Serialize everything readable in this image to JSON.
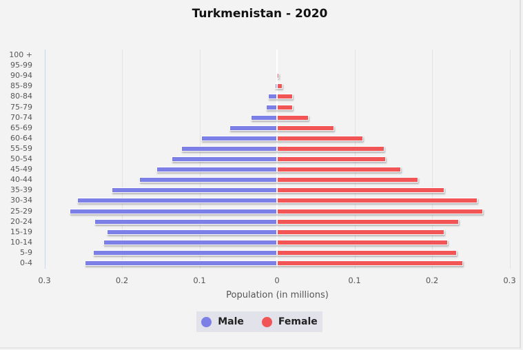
{
  "chart_data": {
    "type": "bar",
    "orientation": "horizontal",
    "subtype": "population-pyramid",
    "title": "Turkmenistan - 2020",
    "xlabel": "Population (in millions)",
    "ylabel": "",
    "xlim": [
      -0.3,
      0.3
    ],
    "x_ticks": [
      "0.3",
      "0.2",
      "0.1",
      "0",
      "0.1",
      "0.2",
      "0.3"
    ],
    "grid": true,
    "legend_position": "bottom",
    "categories": [
      "0-4",
      "5-9",
      "10-14",
      "15-19",
      "20-24",
      "25-29",
      "30-34",
      "35-39",
      "40-44",
      "45-49",
      "50-54",
      "55-59",
      "60-64",
      "65-69",
      "70-74",
      "75-79",
      "80-84",
      "85-89",
      "90-94",
      "95-99",
      "100 +"
    ],
    "series": [
      {
        "name": "Male",
        "color": "#7b7fe6",
        "values": [
          0.248,
          0.237,
          0.224,
          0.22,
          0.236,
          0.268,
          0.258,
          0.213,
          0.178,
          0.156,
          0.136,
          0.124,
          0.098,
          0.061,
          0.034,
          0.014,
          0.012,
          0.003,
          0.0,
          0.0,
          0.0
        ]
      },
      {
        "name": "Female",
        "color": "#f15555",
        "values": [
          0.24,
          0.232,
          0.22,
          0.216,
          0.235,
          0.266,
          0.259,
          0.216,
          0.182,
          0.16,
          0.14,
          0.139,
          0.111,
          0.074,
          0.041,
          0.02,
          0.02,
          0.007,
          0.002,
          0.0,
          0.0
        ]
      }
    ]
  },
  "legend": {
    "male": "Male",
    "female": "Female"
  }
}
